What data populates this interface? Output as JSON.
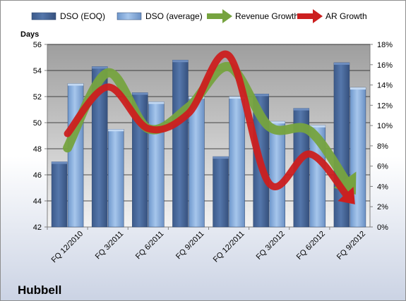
{
  "chart_data": {
    "type": "bar",
    "title": "Hubbell",
    "ylabel": "Days",
    "ylim": [
      42,
      56
    ],
    "y2lim": [
      0,
      18
    ],
    "yticks": [
      "42",
      "44",
      "46",
      "48",
      "50",
      "52",
      "54",
      "56"
    ],
    "y2ticks": [
      "0%",
      "2%",
      "4%",
      "6%",
      "8%",
      "10%",
      "12%",
      "14%",
      "16%",
      "18%"
    ],
    "categories": [
      "FQ 12/2010",
      "FQ 3/2011",
      "FQ 6/2011",
      "FQ 9/2011",
      "FQ 12/2011",
      "FQ 3/2012",
      "FQ 6/2012",
      "FQ 9/2012"
    ],
    "series": [
      {
        "name": "DSO (EOQ)",
        "axis": "left",
        "kind": "bar",
        "color": "#4a6a9c",
        "values": [
          47.0,
          54.3,
          52.3,
          54.8,
          47.4,
          52.2,
          51.1,
          54.6
        ]
      },
      {
        "name": "DSO (average)",
        "axis": "left",
        "kind": "bar",
        "color": "#8fb3e0",
        "values": [
          53.0,
          49.5,
          51.6,
          52.0,
          52.0,
          50.1,
          49.8,
          52.7
        ]
      },
      {
        "name": "Revenue Growth",
        "axis": "right",
        "kind": "arrow",
        "color": "#76a33f",
        "values": [
          7.8,
          15.2,
          9.7,
          11.8,
          15.8,
          9.9,
          9.5,
          4.0
        ]
      },
      {
        "name": "AR Growth",
        "axis": "right",
        "kind": "arrow",
        "color": "#cc1f1f",
        "values": [
          9.2,
          13.8,
          9.7,
          11.2,
          16.9,
          4.3,
          7.2,
          2.8
        ]
      }
    ],
    "legend": {
      "position": "top"
    },
    "grid": true
  }
}
